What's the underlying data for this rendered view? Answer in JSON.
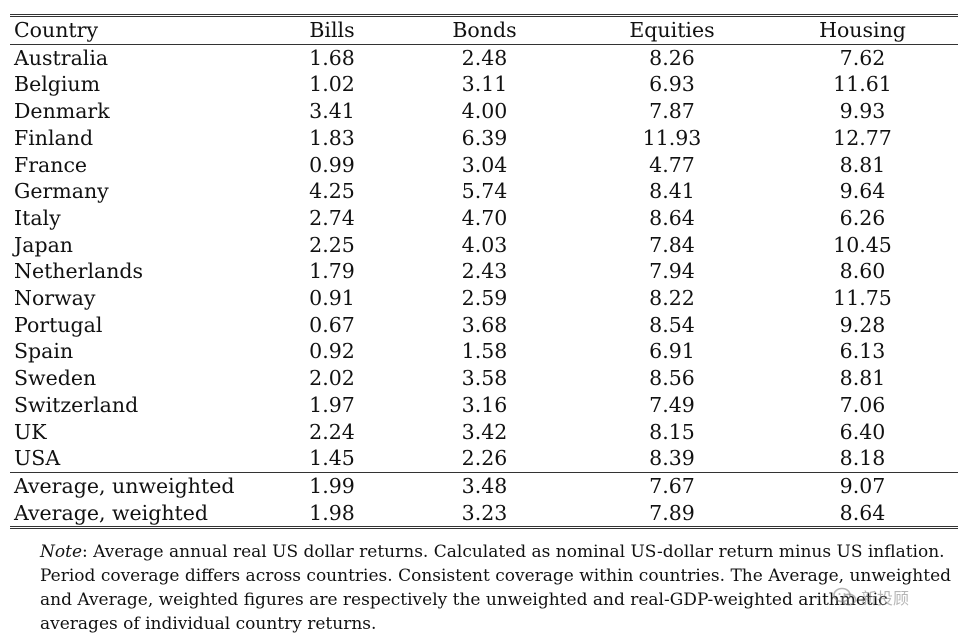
{
  "table": {
    "headers": [
      "Country",
      "Bills",
      "Bonds",
      "Equities",
      "Housing"
    ],
    "rows": [
      [
        "Australia",
        "1.68",
        "2.48",
        "8.26",
        "7.62"
      ],
      [
        "Belgium",
        "1.02",
        "3.11",
        "6.93",
        "11.61"
      ],
      [
        "Denmark",
        "3.41",
        "4.00",
        "7.87",
        "9.93"
      ],
      [
        "Finland",
        "1.83",
        "6.39",
        "11.93",
        "12.77"
      ],
      [
        "France",
        "0.99",
        "3.04",
        "4.77",
        "8.81"
      ],
      [
        "Germany",
        "4.25",
        "5.74",
        "8.41",
        "9.64"
      ],
      [
        "Italy",
        "2.74",
        "4.70",
        "8.64",
        "6.26"
      ],
      [
        "Japan",
        "2.25",
        "4.03",
        "7.84",
        "10.45"
      ],
      [
        "Netherlands",
        "1.79",
        "2.43",
        "7.94",
        "8.60"
      ],
      [
        "Norway",
        "0.91",
        "2.59",
        "8.22",
        "11.75"
      ],
      [
        "Portugal",
        "0.67",
        "3.68",
        "8.54",
        "9.28"
      ],
      [
        "Spain",
        "0.92",
        "1.58",
        "6.91",
        "6.13"
      ],
      [
        "Sweden",
        "2.02",
        "3.58",
        "8.56",
        "8.81"
      ],
      [
        "Switzerland",
        "1.97",
        "3.16",
        "7.49",
        "7.06"
      ],
      [
        "UK",
        "2.24",
        "3.42",
        "8.15",
        "6.40"
      ],
      [
        "USA",
        "1.45",
        "2.26",
        "8.39",
        "8.18"
      ]
    ],
    "averages": [
      [
        "Average, unweighted",
        "1.99",
        "3.48",
        "7.67",
        "9.07"
      ],
      [
        "Average, weighted",
        "1.98",
        "3.23",
        "7.89",
        "8.64"
      ]
    ]
  },
  "note": {
    "lead": "Note",
    "text": ": Average annual real US dollar returns. Calculated as nominal US-dollar return minus US inflation. Period coverage differs across countries. Consistent coverage within countries. The Average, unweighted and Average, weighted figures are respectively the unweighted and real-GDP-weighted arithmetic averages of individual country returns."
  },
  "watermark": {
    "text": "新投顾",
    "icon": "wechat-icon"
  }
}
